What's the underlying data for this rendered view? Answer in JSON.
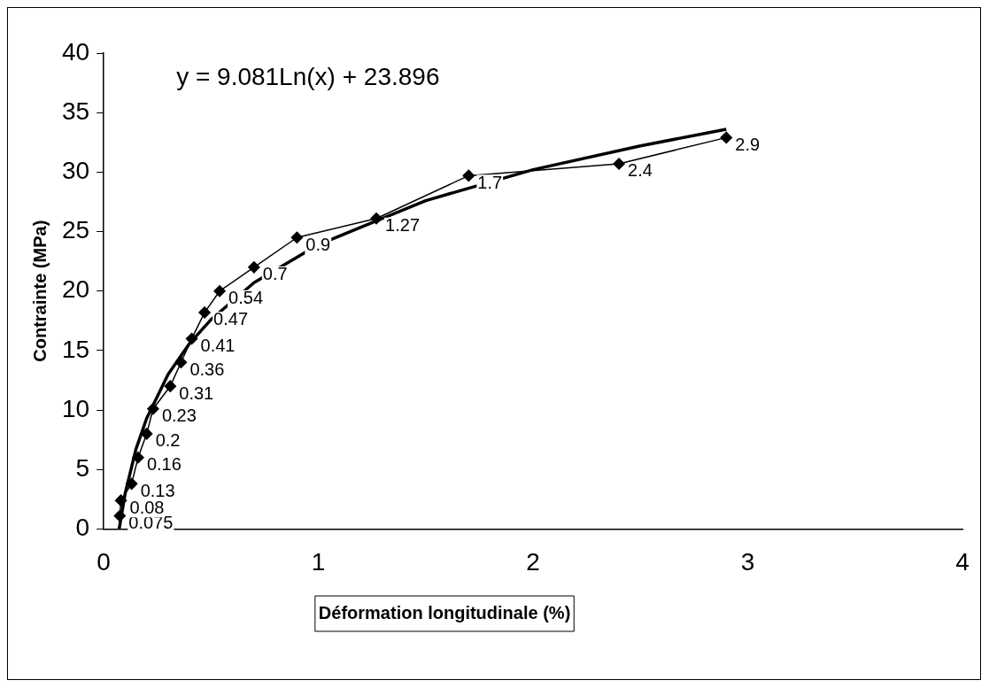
{
  "chart_data": {
    "type": "line",
    "xlabel": "Déformation longitudinale (%)",
    "ylabel": "Contrainte (MPa)",
    "annotations": [
      "y = 9.081Ln(x) + 23.896",
      {
        "text": "0.075",
        "x": 0.075,
        "y": 1.1
      },
      {
        "text": "0.08",
        "x": 0.08,
        "y": 2.4
      },
      {
        "text": "0.13",
        "x": 0.13,
        "y": 3.8
      },
      {
        "text": "0.16",
        "x": 0.16,
        "y": 6.0
      },
      {
        "text": "0.2",
        "x": 0.2,
        "y": 8.0
      },
      {
        "text": "0.23",
        "x": 0.23,
        "y": 10.1
      },
      {
        "text": "0.31",
        "x": 0.31,
        "y": 12.0
      },
      {
        "text": "0.36",
        "x": 0.36,
        "y": 14.0
      },
      {
        "text": "0.41",
        "x": 0.41,
        "y": 16.0
      },
      {
        "text": "0.47",
        "x": 0.47,
        "y": 18.2
      },
      {
        "text": "0.54",
        "x": 0.54,
        "y": 20.0
      },
      {
        "text": "0.7",
        "x": 0.7,
        "y": 22.0
      },
      {
        "text": "0.9",
        "x": 0.9,
        "y": 24.5
      },
      {
        "text": "1.27",
        "x": 1.27,
        "y": 26.1
      },
      {
        "text": "1.7",
        "x": 1.7,
        "y": 29.7
      },
      {
        "text": "2.4",
        "x": 2.4,
        "y": 30.7
      },
      {
        "text": "2.9",
        "x": 2.9,
        "y": 32.9
      }
    ],
    "xlim": [
      0,
      4
    ],
    "xticks": [
      0,
      1,
      2,
      3,
      4
    ],
    "ylim": [
      0,
      40
    ],
    "yticks": [
      0,
      5,
      10,
      15,
      20,
      25,
      30,
      35,
      40
    ],
    "grid": false,
    "legend": false,
    "series": [
      {
        "type": "line",
        "color": "#000000",
        "marker": "diamond",
        "x": [
          0.075,
          0.08,
          0.13,
          0.16,
          0.2,
          0.23,
          0.31,
          0.36,
          0.41,
          0.47,
          0.54,
          0.7,
          0.9,
          1.27,
          1.7,
          2.4,
          2.9
        ],
        "values": [
          1.1,
          2.4,
          3.8,
          6.0,
          8.0,
          10.1,
          12.0,
          14.0,
          16.0,
          18.2,
          20.0,
          22.0,
          24.5,
          26.1,
          29.7,
          30.7,
          32.9
        ]
      },
      {
        "type": "line",
        "color": "#000000",
        "marker": "none",
        "x": [
          0.072,
          0.1,
          0.15,
          0.2,
          0.3,
          0.4,
          0.5,
          0.7,
          1,
          1.5,
          2,
          2.5,
          2.9
        ],
        "values": [
          0.0,
          3.0,
          6.7,
          9.3,
          13.0,
          15.6,
          17.6,
          20.7,
          23.9,
          27.6,
          30.2,
          32.2,
          33.6
        ]
      }
    ]
  }
}
